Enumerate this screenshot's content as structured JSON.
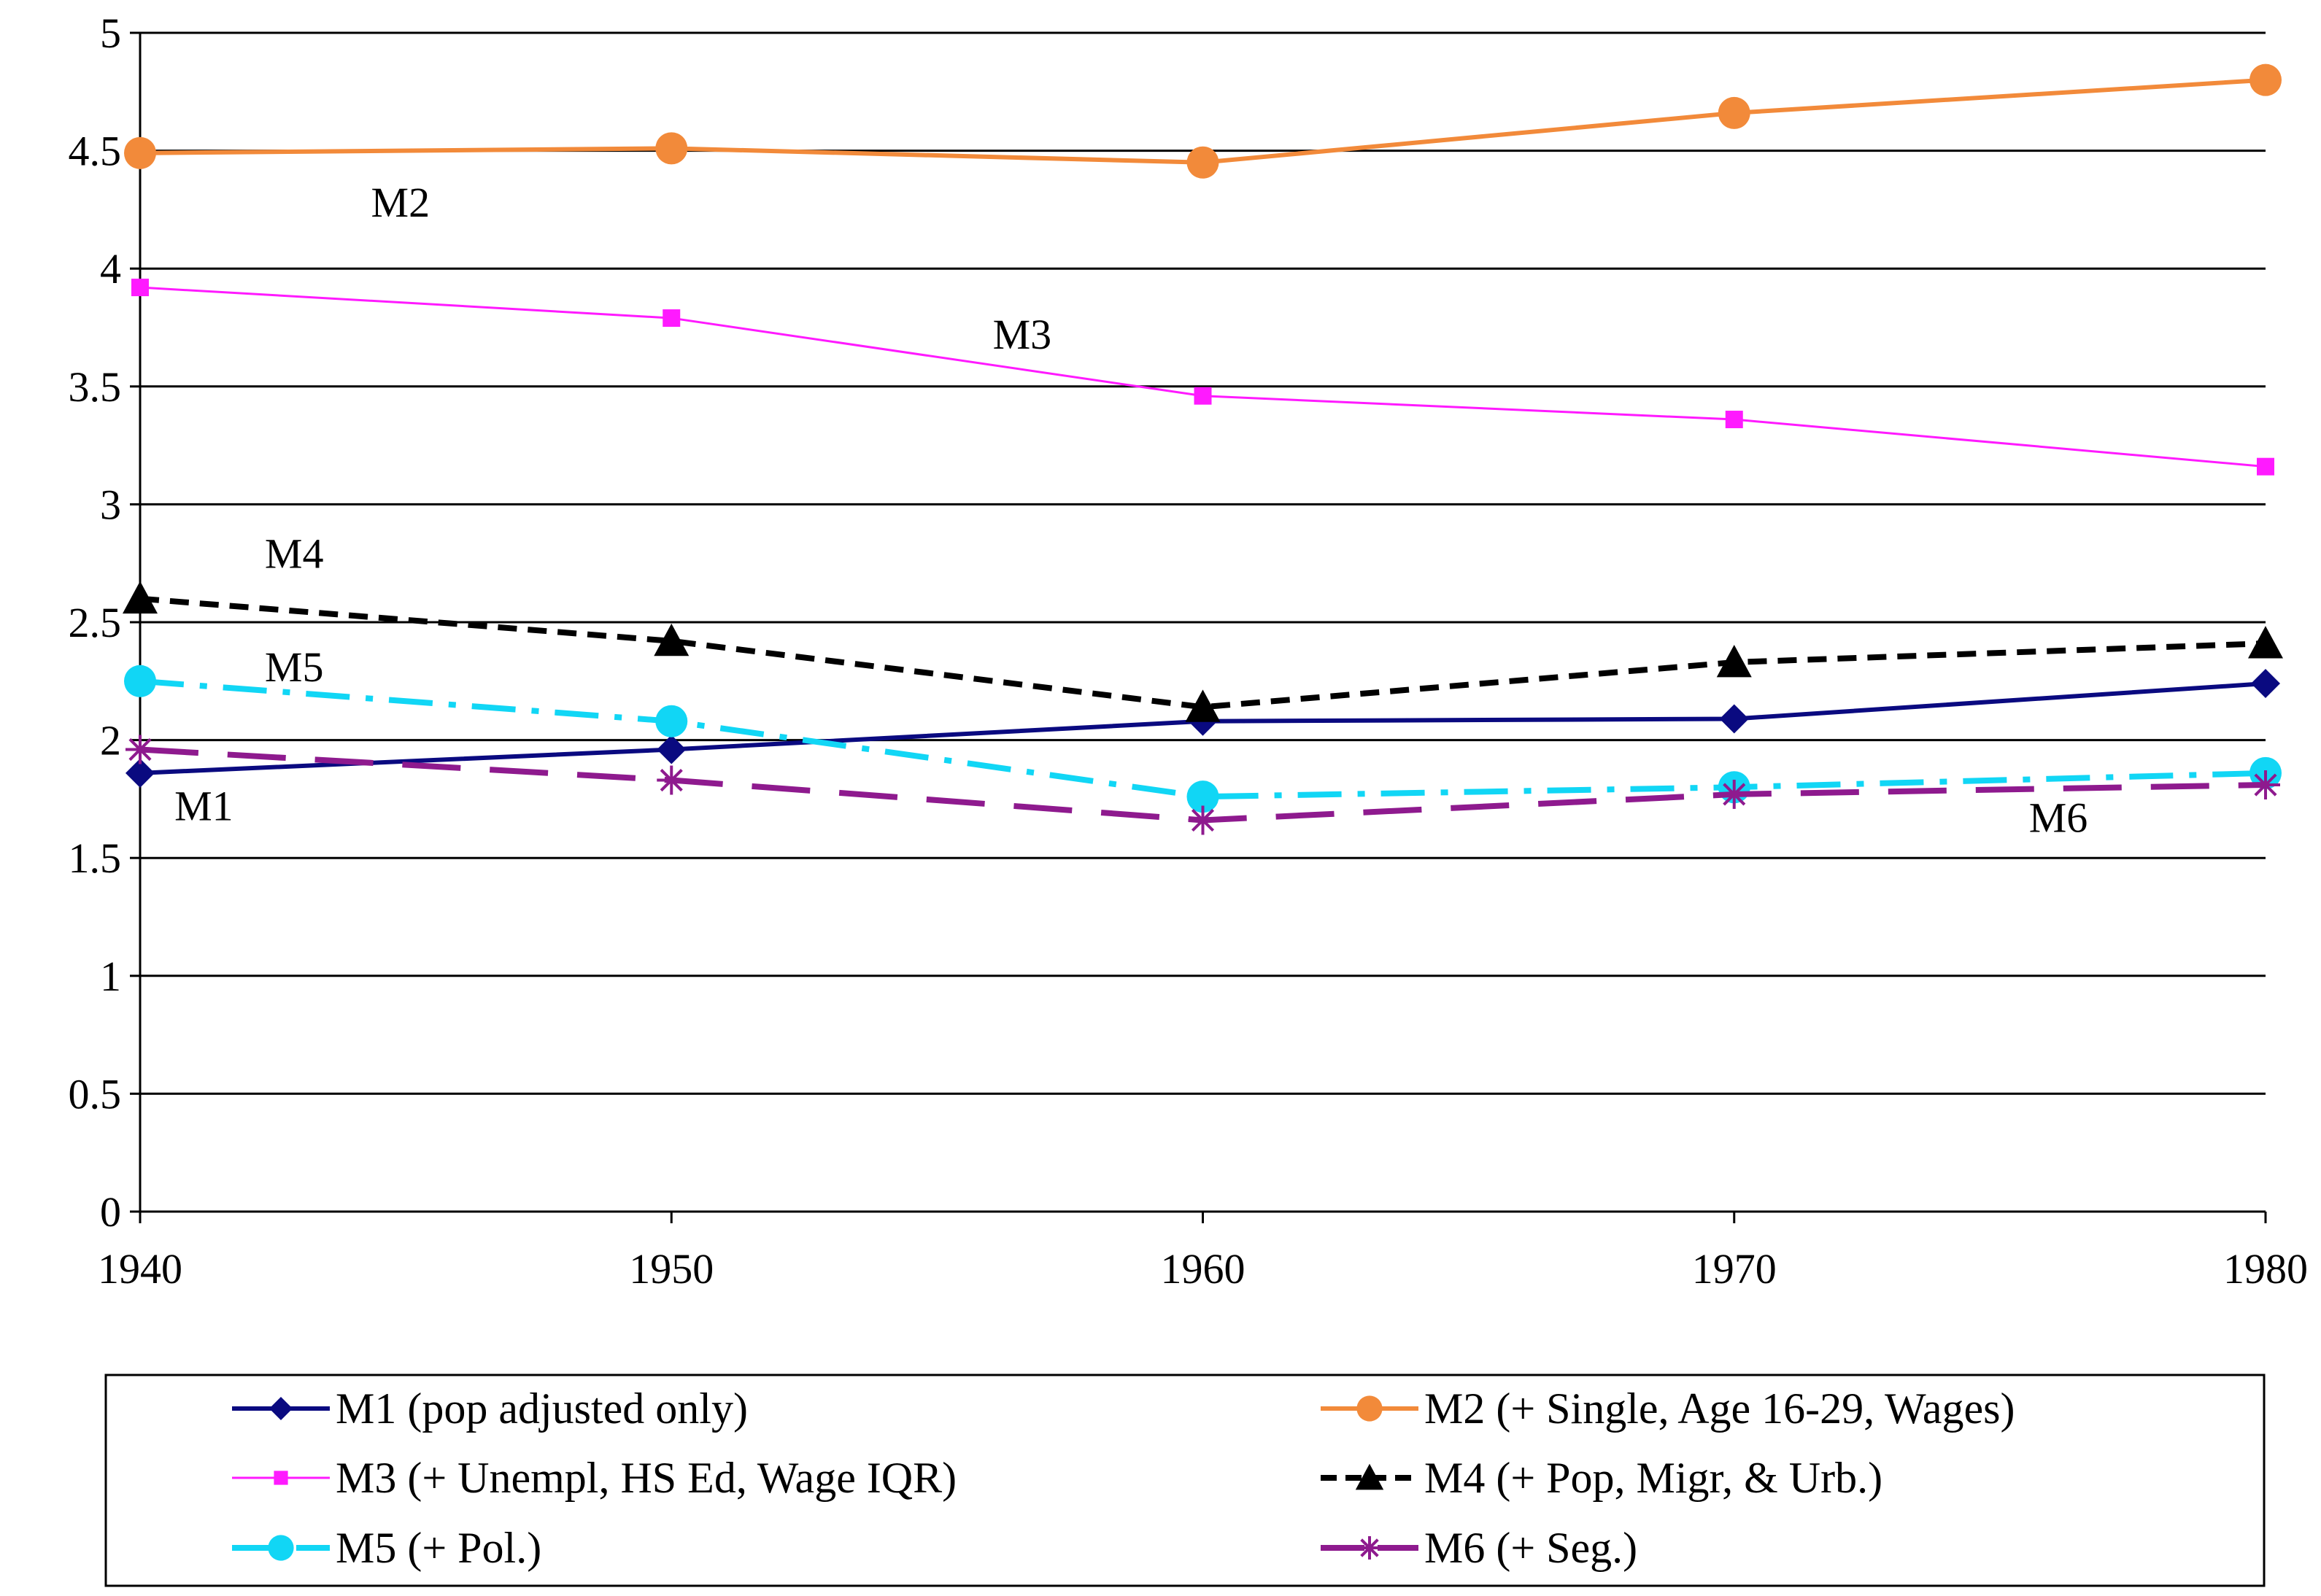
{
  "chart_data": {
    "type": "line",
    "title": "",
    "xlabel": "",
    "ylabel": "",
    "x": [
      1940,
      1950,
      1960,
      1970,
      1980
    ],
    "x_tick_labels": [
      "1940",
      "1950",
      "1960",
      "1970",
      "1980"
    ],
    "ylim": [
      0,
      5
    ],
    "y_tick_labels": [
      "0",
      "0.5",
      "1",
      "1.5",
      "2",
      "2.5",
      "3",
      "3.5",
      "4",
      "4.5",
      "5"
    ],
    "grid": "horizontal",
    "legend_position": "bottom",
    "series": [
      {
        "name": "M1 (pop adjusted only)",
        "values": [
          1.86,
          1.96,
          2.08,
          2.09,
          2.24
        ],
        "color": "#0a0a80",
        "marker": "diamond",
        "dash": "solid"
      },
      {
        "name": "M2 (+ Single, Age 16-29, Wages)",
        "values": [
          4.49,
          4.51,
          4.45,
          4.66,
          4.8
        ],
        "color": "#f28a3a",
        "marker": "circle",
        "dash": "solid"
      },
      {
        "name": "M3 (+ Unempl, HS Ed, Wage IQR)",
        "values": [
          3.92,
          3.79,
          3.46,
          3.36,
          3.16
        ],
        "color": "#ff1aff",
        "marker": "square",
        "dash": "solid"
      },
      {
        "name": "M4 (+ Pop, Migr, & Urb.)",
        "values": [
          2.6,
          2.42,
          2.14,
          2.33,
          2.41
        ],
        "color": "#000000",
        "marker": "triangle",
        "dash": "dashed"
      },
      {
        "name": "M5 (+ Pol.)",
        "values": [
          2.25,
          2.08,
          1.76,
          1.8,
          1.86
        ],
        "color": "#11d6f5",
        "marker": "circle",
        "dash": "dashdot"
      },
      {
        "name": "M6 (+ Seg.)",
        "values": [
          1.96,
          1.83,
          1.66,
          1.77,
          1.81
        ],
        "color": "#8e1a8e",
        "marker": "star",
        "dash": "longdash"
      }
    ],
    "annotations": [
      {
        "text": "M1",
        "x": 1941.2,
        "y": 1.66
      },
      {
        "text": "M2",
        "x": 1944.9,
        "y": 4.22
      },
      {
        "text": "M3",
        "x": 1956.6,
        "y": 3.66
      },
      {
        "text": "M4",
        "x": 1942.9,
        "y": 2.73
      },
      {
        "text": "M5",
        "x": 1942.9,
        "y": 2.25
      },
      {
        "text": "M6",
        "x": 1976.1,
        "y": 1.61
      }
    ]
  }
}
